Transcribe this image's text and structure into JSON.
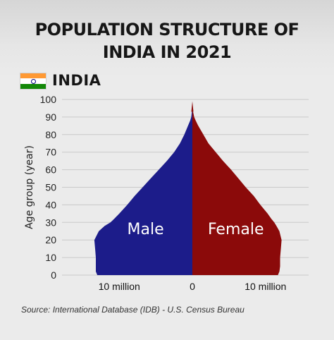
{
  "title_line1": "POPULATION STRUCTURE OF",
  "title_line2": "INDIA IN 2021",
  "country_label": "INDIA",
  "source": "Source: International Database (IDB) - U.S. Census Bureau",
  "flag_colors": {
    "saffron": "#ff9933",
    "white": "#ffffff",
    "green": "#138808",
    "chakra": "#000080"
  },
  "chart_data": {
    "type": "bar",
    "orientation": "horizontal-population-pyramid",
    "ylabel": "Age group (year)",
    "ylim": [
      0,
      100
    ],
    "yticks": [
      0,
      10,
      20,
      30,
      40,
      50,
      60,
      70,
      80,
      90,
      100
    ],
    "xlim_million": [
      -15.9,
      15.9
    ],
    "xticks": [
      {
        "value": -10,
        "label": "10 million"
      },
      {
        "value": 0,
        "label": "0"
      },
      {
        "value": 10,
        "label": "10 million"
      }
    ],
    "grid": true,
    "series": [
      {
        "name": "Male",
        "color": "#1c1c8a",
        "ages": [
          0,
          2,
          5,
          10,
          15,
          20,
          25,
          28,
          30,
          32,
          35,
          40,
          45,
          50,
          55,
          60,
          65,
          70,
          75,
          80,
          85,
          88,
          90,
          93,
          96,
          98
        ],
        "values_million": [
          13.0,
          13.2,
          13.2,
          13.2,
          13.3,
          13.4,
          12.8,
          12.0,
          11.2,
          10.7,
          10.0,
          8.9,
          7.9,
          6.8,
          5.7,
          4.6,
          3.5,
          2.5,
          1.7,
          1.1,
          0.6,
          0.3,
          0.15,
          0.07,
          0.02,
          0.0
        ]
      },
      {
        "name": "Female",
        "color": "#8b0a0a",
        "ages": [
          0,
          2,
          5,
          10,
          15,
          20,
          25,
          28,
          30,
          32,
          35,
          40,
          45,
          50,
          55,
          60,
          65,
          70,
          75,
          80,
          85,
          88,
          90,
          93,
          96,
          98
        ],
        "values_million": [
          11.7,
          11.9,
          12.0,
          12.0,
          12.1,
          12.2,
          11.9,
          11.5,
          11.2,
          10.8,
          10.3,
          9.3,
          8.4,
          7.3,
          6.3,
          5.3,
          4.2,
          3.2,
          2.2,
          1.5,
          0.8,
          0.45,
          0.25,
          0.1,
          0.03,
          0.0
        ]
      }
    ]
  }
}
